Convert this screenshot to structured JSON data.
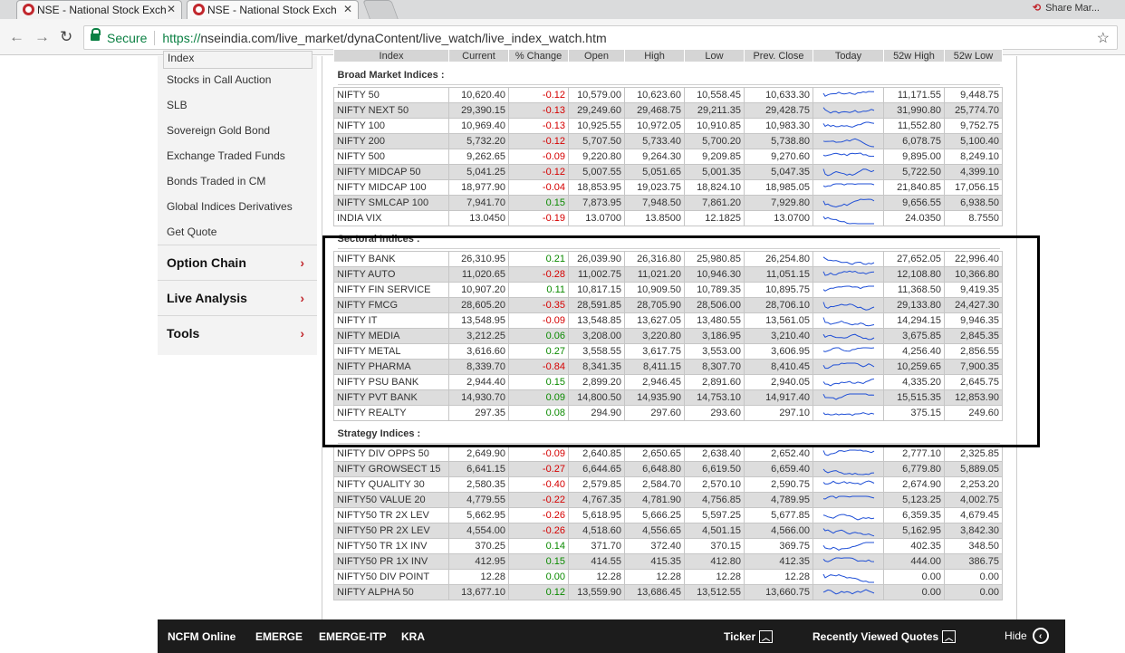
{
  "browser": {
    "tabs": [
      {
        "title": "NSE - National Stock Exch",
        "close": "✕"
      },
      {
        "title": "NSE - National Stock Exch",
        "close": "✕"
      }
    ],
    "share_label": "Share Mar...",
    "secure_label": "Secure",
    "url_scheme": "https://",
    "url_rest": "nseindia.com/live_market/dynaContent/live_watch/live_index_watch.htm"
  },
  "sidebar": {
    "top_item": "Index",
    "links": [
      "Stocks in Call Auction",
      "SLB",
      "Sovereign Gold Bond",
      "Exchange Traded Funds",
      "Bonds Traded in CM",
      "Global Indices Derivatives",
      "Get Quote"
    ],
    "sections": [
      "Option Chain",
      "Live Analysis",
      "Tools"
    ]
  },
  "table": {
    "headers": [
      "Index",
      "Current",
      "% Change",
      "Open",
      "High",
      "Low",
      "Prev. Close",
      "Today",
      "52w High",
      "52w Low"
    ],
    "groups": [
      {
        "title": "Broad Market Indices :",
        "rows": [
          [
            "NIFTY 50",
            "10,620.40",
            "-0.12",
            "10,579.00",
            "10,623.60",
            "10,558.45",
            "10,633.30",
            "11,171.55",
            "9,448.75"
          ],
          [
            "NIFTY NEXT 50",
            "29,390.15",
            "-0.13",
            "29,249.60",
            "29,468.75",
            "29,211.35",
            "29,428.75",
            "31,990.80",
            "25,774.70"
          ],
          [
            "NIFTY 100",
            "10,969.40",
            "-0.13",
            "10,925.55",
            "10,972.05",
            "10,910.85",
            "10,983.30",
            "11,552.80",
            "9,752.75"
          ],
          [
            "NIFTY 200",
            "5,732.20",
            "-0.12",
            "5,707.50",
            "5,733.40",
            "5,700.20",
            "5,738.80",
            "6,078.75",
            "5,100.40"
          ],
          [
            "NIFTY 500",
            "9,262.65",
            "-0.09",
            "9,220.80",
            "9,264.30",
            "9,209.85",
            "9,270.60",
            "9,895.00",
            "8,249.10"
          ],
          [
            "NIFTY MIDCAP 50",
            "5,041.25",
            "-0.12",
            "5,007.55",
            "5,051.65",
            "5,001.35",
            "5,047.35",
            "5,722.50",
            "4,399.10"
          ],
          [
            "NIFTY MIDCAP 100",
            "18,977.90",
            "-0.04",
            "18,853.95",
            "19,023.75",
            "18,824.10",
            "18,985.05",
            "21,840.85",
            "17,056.15"
          ],
          [
            "NIFTY SMLCAP 100",
            "7,941.70",
            "0.15",
            "7,873.95",
            "7,948.50",
            "7,861.20",
            "7,929.80",
            "9,656.55",
            "6,938.50"
          ],
          [
            "INDIA VIX",
            "13.0450",
            "-0.19",
            "13.0700",
            "13.8500",
            "12.1825",
            "13.0700",
            "24.0350",
            "8.7550"
          ]
        ]
      },
      {
        "title": "Sectoral Indices :",
        "rows": [
          [
            "NIFTY BANK",
            "26,310.95",
            "0.21",
            "26,039.90",
            "26,316.80",
            "25,980.85",
            "26,254.80",
            "27,652.05",
            "22,996.40"
          ],
          [
            "NIFTY AUTO",
            "11,020.65",
            "-0.28",
            "11,002.75",
            "11,021.20",
            "10,946.30",
            "11,051.15",
            "12,108.80",
            "10,366.80"
          ],
          [
            "NIFTY FIN SERVICE",
            "10,907.20",
            "0.11",
            "10,817.15",
            "10,909.50",
            "10,789.35",
            "10,895.75",
            "11,368.50",
            "9,419.35"
          ],
          [
            "NIFTY FMCG",
            "28,605.20",
            "-0.35",
            "28,591.85",
            "28,705.90",
            "28,506.00",
            "28,706.10",
            "29,133.80",
            "24,427.30"
          ],
          [
            "NIFTY IT",
            "13,548.95",
            "-0.09",
            "13,548.85",
            "13,627.05",
            "13,480.55",
            "13,561.05",
            "14,294.15",
            "9,946.35"
          ],
          [
            "NIFTY MEDIA",
            "3,212.25",
            "0.06",
            "3,208.00",
            "3,220.80",
            "3,186.95",
            "3,210.40",
            "3,675.85",
            "2,845.35"
          ],
          [
            "NIFTY METAL",
            "3,616.60",
            "0.27",
            "3,558.55",
            "3,617.75",
            "3,553.00",
            "3,606.95",
            "4,256.40",
            "2,856.55"
          ],
          [
            "NIFTY PHARMA",
            "8,339.70",
            "-0.84",
            "8,341.35",
            "8,411.15",
            "8,307.70",
            "8,410.45",
            "10,259.65",
            "7,900.35"
          ],
          [
            "NIFTY PSU BANK",
            "2,944.40",
            "0.15",
            "2,899.20",
            "2,946.45",
            "2,891.60",
            "2,940.05",
            "4,335.20",
            "2,645.75"
          ],
          [
            "NIFTY PVT BANK",
            "14,930.70",
            "0.09",
            "14,800.50",
            "14,935.90",
            "14,753.10",
            "14,917.40",
            "15,515.35",
            "12,853.90"
          ],
          [
            "NIFTY REALTY",
            "297.35",
            "0.08",
            "294.90",
            "297.60",
            "293.60",
            "297.10",
            "375.15",
            "249.60"
          ]
        ]
      },
      {
        "title": "Strategy Indices :",
        "rows": [
          [
            "NIFTY DIV OPPS 50",
            "2,649.90",
            "-0.09",
            "2,640.85",
            "2,650.65",
            "2,638.40",
            "2,652.40",
            "2,777.10",
            "2,325.85"
          ],
          [
            "NIFTY GROWSECT 15",
            "6,641.15",
            "-0.27",
            "6,644.65",
            "6,648.80",
            "6,619.50",
            "6,659.40",
            "6,779.80",
            "5,889.05"
          ],
          [
            "NIFTY QUALITY 30",
            "2,580.35",
            "-0.40",
            "2,579.85",
            "2,584.70",
            "2,570.10",
            "2,590.75",
            "2,674.90",
            "2,253.20"
          ],
          [
            "NIFTY50 VALUE 20",
            "4,779.55",
            "-0.22",
            "4,767.35",
            "4,781.90",
            "4,756.85",
            "4,789.95",
            "5,123.25",
            "4,002.75"
          ],
          [
            "NIFTY50 TR 2X LEV",
            "5,662.95",
            "-0.26",
            "5,618.95",
            "5,666.25",
            "5,597.25",
            "5,677.85",
            "6,359.35",
            "4,679.45"
          ],
          [
            "NIFTY50 PR 2X LEV",
            "4,554.00",
            "-0.26",
            "4,518.60",
            "4,556.65",
            "4,501.15",
            "4,566.00",
            "5,162.95",
            "3,842.30"
          ],
          [
            "NIFTY50 TR 1X INV",
            "370.25",
            "0.14",
            "371.70",
            "372.40",
            "370.15",
            "369.75",
            "402.35",
            "348.50"
          ],
          [
            "NIFTY50 PR 1X INV",
            "412.95",
            "0.15",
            "414.55",
            "415.35",
            "412.80",
            "412.35",
            "444.00",
            "386.75"
          ],
          [
            "NIFTY50 DIV POINT",
            "12.28",
            "0.00",
            "12.28",
            "12.28",
            "12.28",
            "12.28",
            "0.00",
            "0.00"
          ],
          [
            "NIFTY ALPHA 50",
            "13,677.10",
            "0.12",
            "13,559.90",
            "13,686.45",
            "13,512.55",
            "13,660.75",
            "0.00",
            "0.00"
          ]
        ]
      }
    ]
  },
  "footer": {
    "links": [
      "NCFM Online",
      "EMERGE",
      "EMERGE-ITP",
      "KRA"
    ],
    "ticker_label": "Ticker",
    "recent_label": "Recently Viewed Quotes",
    "hide_label": "Hide"
  },
  "colors": {
    "negative": "#d50000",
    "positive": "#0b8a00",
    "sparkline": "#1f4fd6",
    "chevron": "#c1272d"
  },
  "icons": [
    "nse-favicon",
    "close-icon",
    "back-icon",
    "forward-icon",
    "reload-icon",
    "lock-icon",
    "star-icon",
    "chevron-right-icon",
    "caret-up-icon",
    "hide-circle-icon",
    "sparkline-chart"
  ]
}
